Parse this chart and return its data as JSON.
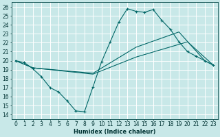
{
  "xlabel": "Humidex (Indice chaleur)",
  "background_color": "#c8e8e8",
  "grid_color": "#ffffff",
  "line_color": "#006666",
  "xlim": [
    -0.5,
    23.5
  ],
  "ylim": [
    13.5,
    26.5
  ],
  "yticks": [
    14,
    15,
    16,
    17,
    18,
    19,
    20,
    21,
    22,
    23,
    24,
    25,
    26
  ],
  "xticks": [
    0,
    1,
    2,
    3,
    4,
    5,
    6,
    7,
    8,
    9,
    10,
    11,
    12,
    13,
    14,
    15,
    16,
    17,
    18,
    19,
    20,
    21,
    22,
    23
  ],
  "line1_x": [
    0,
    1,
    2,
    3,
    4,
    5,
    6,
    7,
    8,
    9,
    10,
    11,
    12,
    13,
    14,
    15,
    16,
    17,
    18,
    19,
    20,
    21,
    22,
    23
  ],
  "line1_y": [
    20.0,
    19.8,
    19.1,
    18.2,
    17.0,
    16.5,
    15.5,
    14.4,
    14.3,
    17.1,
    19.9,
    22.1,
    24.3,
    25.8,
    25.5,
    25.4,
    25.7,
    24.5,
    23.5,
    22.1,
    21.0,
    20.5,
    20.0,
    19.5
  ],
  "line2_x": [
    0,
    2,
    9,
    14,
    20,
    23
  ],
  "line2_y": [
    20.0,
    19.2,
    18.5,
    20.4,
    22.1,
    19.5
  ],
  "line3_x": [
    0,
    2,
    9,
    14,
    19,
    22,
    23
  ],
  "line3_y": [
    20.0,
    19.2,
    18.6,
    21.5,
    23.2,
    20.0,
    19.5
  ],
  "xlabel_fontsize": 6,
  "tick_fontsize": 5.5
}
